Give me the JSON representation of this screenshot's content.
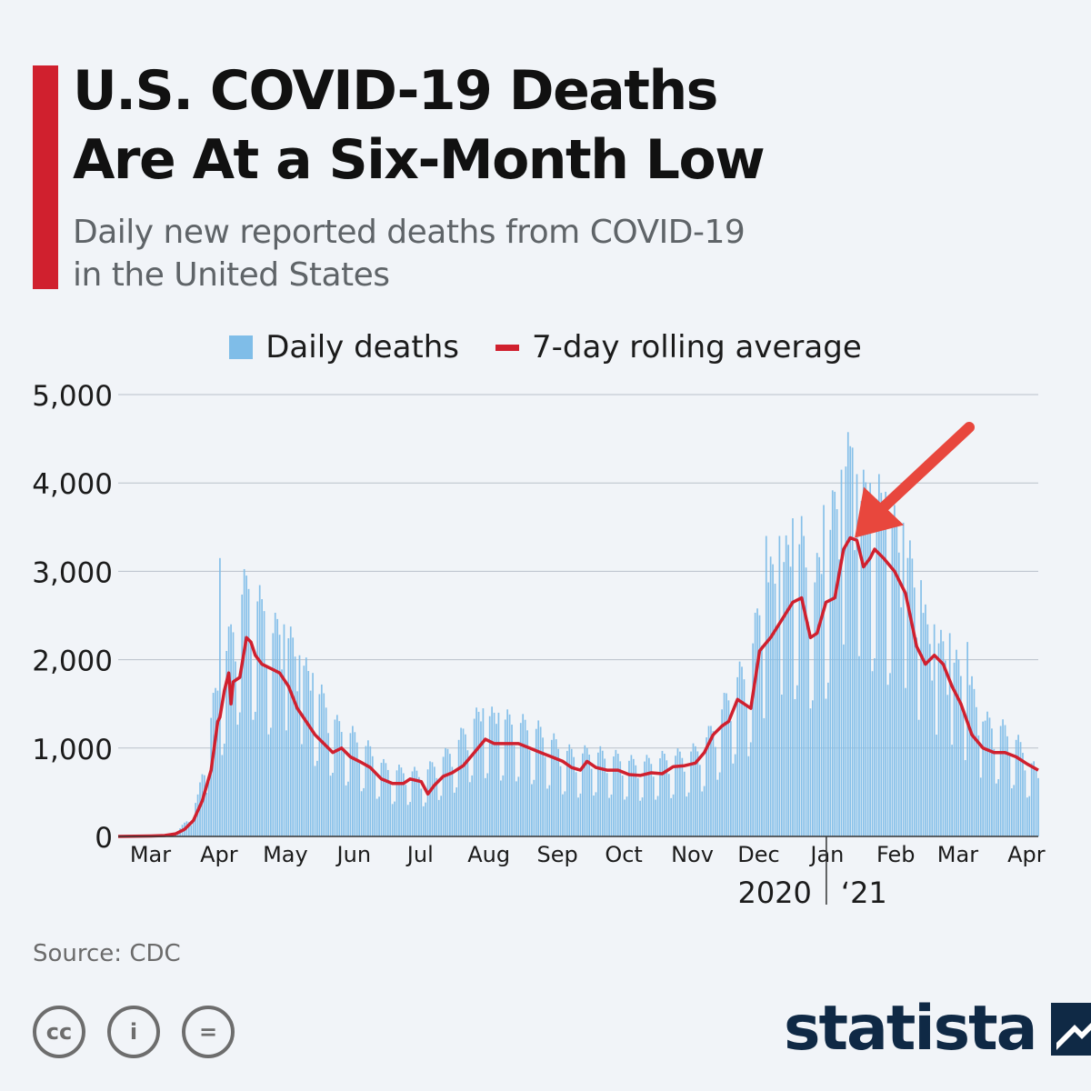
{
  "header": {
    "title_line1": "U.S. COVID-19 Deaths",
    "title_line2": "Are At a Six-Month Low",
    "subtitle_line1": "Daily new reported deaths from COVID-19",
    "subtitle_line2": "in the United States"
  },
  "colors": {
    "accent": "#d0202e",
    "bars": "#7fbde8",
    "line": "#d0202e",
    "arrow": "#e8473d",
    "grid": "#b9c1ca",
    "brand": "#0f2945"
  },
  "icons": [
    "creative-commons-icon",
    "attribution-icon",
    "no-derivatives-icon",
    "statista-logo-icon"
  ],
  "legend": {
    "position": "top-center",
    "bars_label": "Daily deaths",
    "line_label": "7-day rolling average"
  },
  "footer": {
    "source": "Source: CDC",
    "brand": "statista",
    "cc_labels": [
      "cc",
      "i",
      "="
    ]
  },
  "chart_data": {
    "type": "bar",
    "title": "U.S. COVID-19 Deaths Are At a Six-Month Low",
    "subtitle": "Daily new reported deaths from COVID-19 in the United States",
    "ylim": [
      0,
      5000
    ],
    "yticks": [
      0,
      1000,
      2000,
      3000,
      4000,
      5000
    ],
    "ytick_labels": [
      "0",
      "1,000",
      "2,000",
      "3,000",
      "4,000",
      "5,000"
    ],
    "xlim": [
      "2020-02-15",
      "2021-04-06"
    ],
    "xticks": [
      {
        "date": "2020-03-01",
        "label": "Mar"
      },
      {
        "date": "2020-04-01",
        "label": "Apr"
      },
      {
        "date": "2020-05-01",
        "label": "May"
      },
      {
        "date": "2020-06-01",
        "label": "Jun"
      },
      {
        "date": "2020-07-01",
        "label": "Jul"
      },
      {
        "date": "2020-08-01",
        "label": "Aug"
      },
      {
        "date": "2020-09-01",
        "label": "Sep"
      },
      {
        "date": "2020-10-01",
        "label": "Oct"
      },
      {
        "date": "2020-11-01",
        "label": "Nov"
      },
      {
        "date": "2020-12-01",
        "label": "Dec"
      },
      {
        "date": "2021-01-01",
        "label": "Jan"
      },
      {
        "date": "2021-02-01",
        "label": "Feb"
      },
      {
        "date": "2021-03-01",
        "label": "Mar"
      },
      {
        "date": "2021-04-01",
        "label": "Apr"
      }
    ],
    "year_labels": [
      {
        "label": "2020",
        "side": "left-of-divider"
      },
      {
        "label": "‘21",
        "side": "right-of-divider"
      }
    ],
    "year_divider_date": "2021-01-01",
    "grid": true,
    "series": [
      {
        "name": "Daily deaths",
        "type": "bar",
        "points": [
          [
            "2020-02-15",
            0
          ],
          [
            "2020-03-01",
            5
          ],
          [
            "2020-03-05",
            10
          ],
          [
            "2020-03-10",
            30
          ],
          [
            "2020-03-14",
            80
          ],
          [
            "2020-03-18",
            180
          ],
          [
            "2020-03-22",
            380
          ],
          [
            "2020-03-26",
            900
          ],
          [
            "2020-03-29",
            1300
          ],
          [
            "2020-04-01",
            1600
          ],
          [
            "2020-04-05",
            1900
          ],
          [
            "2020-04-09",
            2300
          ],
          [
            "2020-04-14",
            2500
          ],
          [
            "2020-04-17",
            2350
          ],
          [
            "2020-04-21",
            2200
          ],
          [
            "2020-04-25",
            2000
          ],
          [
            "2020-04-29",
            2100
          ],
          [
            "2020-05-03",
            1900
          ],
          [
            "2020-05-07",
            1800
          ],
          [
            "2020-05-12",
            1500
          ],
          [
            "2020-05-16",
            1400
          ],
          [
            "2020-05-20",
            1300
          ],
          [
            "2020-05-24",
            1100
          ],
          [
            "2020-05-28",
            1050
          ],
          [
            "2020-06-03",
            950
          ],
          [
            "2020-06-08",
            850
          ],
          [
            "2020-06-14",
            700
          ],
          [
            "2020-06-20",
            650
          ],
          [
            "2020-06-26",
            650
          ],
          [
            "2020-07-01",
            600
          ],
          [
            "2020-07-06",
            700
          ],
          [
            "2020-07-12",
            800
          ],
          [
            "2020-07-18",
            950
          ],
          [
            "2020-07-24",
            1150
          ],
          [
            "2020-07-30",
            1200
          ],
          [
            "2020-08-05",
            1150
          ],
          [
            "2020-08-11",
            1150
          ],
          [
            "2020-08-17",
            1100
          ],
          [
            "2020-08-23",
            1050
          ],
          [
            "2020-08-29",
            950
          ],
          [
            "2020-09-04",
            850
          ],
          [
            "2020-09-10",
            800
          ],
          [
            "2020-09-16",
            850
          ],
          [
            "2020-09-22",
            800
          ],
          [
            "2020-09-28",
            780
          ],
          [
            "2020-10-05",
            730
          ],
          [
            "2020-10-12",
            740
          ],
          [
            "2020-10-19",
            780
          ],
          [
            "2020-10-26",
            800
          ],
          [
            "2020-11-02",
            850
          ],
          [
            "2020-11-08",
            1000
          ],
          [
            "2020-11-14",
            1250
          ],
          [
            "2020-11-20",
            1550
          ],
          [
            "2020-11-26",
            1650
          ],
          [
            "2020-12-02",
            2400
          ],
          [
            "2020-12-08",
            2600
          ],
          [
            "2020-12-14",
            2750
          ],
          [
            "2020-12-20",
            2900
          ],
          [
            "2020-12-26",
            2500
          ],
          [
            "2021-01-01",
            2900
          ],
          [
            "2021-01-07",
            3600
          ],
          [
            "2021-01-12",
            3700
          ],
          [
            "2021-01-16",
            3300
          ],
          [
            "2021-01-21",
            3400
          ],
          [
            "2021-01-26",
            3200
          ],
          [
            "2021-01-31",
            3000
          ],
          [
            "2021-02-05",
            2800
          ],
          [
            "2021-02-10",
            2500
          ],
          [
            "2021-02-15",
            2000
          ],
          [
            "2021-02-20",
            1900
          ],
          [
            "2021-02-25",
            1750
          ],
          [
            "2021-03-02",
            1650
          ],
          [
            "2021-03-07",
            1450
          ],
          [
            "2021-03-12",
            1150
          ],
          [
            "2021-03-17",
            1100
          ],
          [
            "2021-03-22",
            1050
          ],
          [
            "2021-03-27",
            950
          ],
          [
            "2021-04-01",
            800
          ],
          [
            "2021-04-06",
            600
          ]
        ],
        "spikes": [
          [
            "2020-04-01",
            3150
          ],
          [
            "2020-04-14",
            2800
          ],
          [
            "2020-04-21",
            2550
          ],
          [
            "2020-04-30",
            2400
          ],
          [
            "2020-05-07",
            2050
          ],
          [
            "2020-05-13",
            1850
          ],
          [
            "2020-07-29",
            1450
          ],
          [
            "2020-08-05",
            1400
          ],
          [
            "2020-12-04",
            3400
          ],
          [
            "2020-12-10",
            3400
          ],
          [
            "2020-12-16",
            3600
          ],
          [
            "2020-12-30",
            3750
          ],
          [
            "2021-01-07",
            4150
          ],
          [
            "2021-01-12",
            4400
          ],
          [
            "2021-01-14",
            4100
          ],
          [
            "2021-01-20",
            4000
          ],
          [
            "2021-01-27",
            3900
          ],
          [
            "2021-02-04",
            3550
          ],
          [
            "2021-02-12",
            2900
          ],
          [
            "2021-02-18",
            2400
          ],
          [
            "2021-02-25",
            2300
          ],
          [
            "2021-03-05",
            2200
          ],
          [
            "2021-03-12",
            1300
          ],
          [
            "2021-03-20",
            1250
          ]
        ]
      },
      {
        "name": "7-day rolling average",
        "type": "line",
        "points": [
          [
            "2020-02-15",
            0
          ],
          [
            "2020-03-01",
            5
          ],
          [
            "2020-03-07",
            10
          ],
          [
            "2020-03-12",
            30
          ],
          [
            "2020-03-16",
            80
          ],
          [
            "2020-03-20",
            180
          ],
          [
            "2020-03-24",
            400
          ],
          [
            "2020-03-28",
            750
          ],
          [
            "2020-03-31",
            1300
          ],
          [
            "2020-04-01",
            1350
          ],
          [
            "2020-04-03",
            1650
          ],
          [
            "2020-04-05",
            1850
          ],
          [
            "2020-04-06",
            1500
          ],
          [
            "2020-04-07",
            1750
          ],
          [
            "2020-04-10",
            1800
          ],
          [
            "2020-04-13",
            2250
          ],
          [
            "2020-04-15",
            2200
          ],
          [
            "2020-04-17",
            2050
          ],
          [
            "2020-04-20",
            1950
          ],
          [
            "2020-04-24",
            1900
          ],
          [
            "2020-04-28",
            1850
          ],
          [
            "2020-05-02",
            1700
          ],
          [
            "2020-05-06",
            1450
          ],
          [
            "2020-05-10",
            1300
          ],
          [
            "2020-05-14",
            1150
          ],
          [
            "2020-05-18",
            1050
          ],
          [
            "2020-05-22",
            950
          ],
          [
            "2020-05-26",
            1000
          ],
          [
            "2020-05-30",
            900
          ],
          [
            "2020-06-03",
            850
          ],
          [
            "2020-06-08",
            780
          ],
          [
            "2020-06-13",
            650
          ],
          [
            "2020-06-18",
            600
          ],
          [
            "2020-06-23",
            600
          ],
          [
            "2020-06-26",
            650
          ],
          [
            "2020-07-01",
            620
          ],
          [
            "2020-07-04",
            480
          ],
          [
            "2020-07-07",
            580
          ],
          [
            "2020-07-11",
            680
          ],
          [
            "2020-07-15",
            720
          ],
          [
            "2020-07-20",
            800
          ],
          [
            "2020-07-25",
            950
          ],
          [
            "2020-07-30",
            1100
          ],
          [
            "2020-08-03",
            1050
          ],
          [
            "2020-08-09",
            1050
          ],
          [
            "2020-08-14",
            1050
          ],
          [
            "2020-08-19",
            1000
          ],
          [
            "2020-08-24",
            950
          ],
          [
            "2020-08-29",
            900
          ],
          [
            "2020-09-03",
            850
          ],
          [
            "2020-09-07",
            780
          ],
          [
            "2020-09-11",
            750
          ],
          [
            "2020-09-14",
            850
          ],
          [
            "2020-09-18",
            780
          ],
          [
            "2020-09-23",
            750
          ],
          [
            "2020-09-28",
            750
          ],
          [
            "2020-10-03",
            700
          ],
          [
            "2020-10-08",
            690
          ],
          [
            "2020-10-13",
            720
          ],
          [
            "2020-10-18",
            710
          ],
          [
            "2020-10-23",
            790
          ],
          [
            "2020-10-28",
            800
          ],
          [
            "2020-11-02",
            830
          ],
          [
            "2020-11-06",
            950
          ],
          [
            "2020-11-10",
            1150
          ],
          [
            "2020-11-14",
            1250
          ],
          [
            "2020-11-17",
            1300
          ],
          [
            "2020-11-21",
            1550
          ],
          [
            "2020-11-24",
            1500
          ],
          [
            "2020-11-27",
            1450
          ],
          [
            "2020-12-01",
            2100
          ],
          [
            "2020-12-06",
            2250
          ],
          [
            "2020-12-11",
            2450
          ],
          [
            "2020-12-16",
            2650
          ],
          [
            "2020-12-20",
            2700
          ],
          [
            "2020-12-24",
            2250
          ],
          [
            "2020-12-27",
            2300
          ],
          [
            "2020-12-31",
            2650
          ],
          [
            "2021-01-04",
            2700
          ],
          [
            "2021-01-08",
            3250
          ],
          [
            "2021-01-11",
            3380
          ],
          [
            "2021-01-14",
            3350
          ],
          [
            "2021-01-17",
            3050
          ],
          [
            "2021-01-20",
            3150
          ],
          [
            "2021-01-22",
            3250
          ],
          [
            "2021-01-26",
            3150
          ],
          [
            "2021-01-31",
            3000
          ],
          [
            "2021-02-05",
            2750
          ],
          [
            "2021-02-10",
            2150
          ],
          [
            "2021-02-14",
            1950
          ],
          [
            "2021-02-18",
            2050
          ],
          [
            "2021-02-22",
            1950
          ],
          [
            "2021-02-26",
            1700
          ],
          [
            "2021-03-02",
            1500
          ],
          [
            "2021-03-07",
            1150
          ],
          [
            "2021-03-12",
            1000
          ],
          [
            "2021-03-17",
            950
          ],
          [
            "2021-03-22",
            950
          ],
          [
            "2021-03-27",
            900
          ],
          [
            "2021-04-01",
            820
          ],
          [
            "2021-04-06",
            750
          ]
        ]
      }
    ],
    "annotations": [
      {
        "type": "arrow",
        "points_to_date": "2021-01-13",
        "points_to_value": 3380
      }
    ]
  }
}
